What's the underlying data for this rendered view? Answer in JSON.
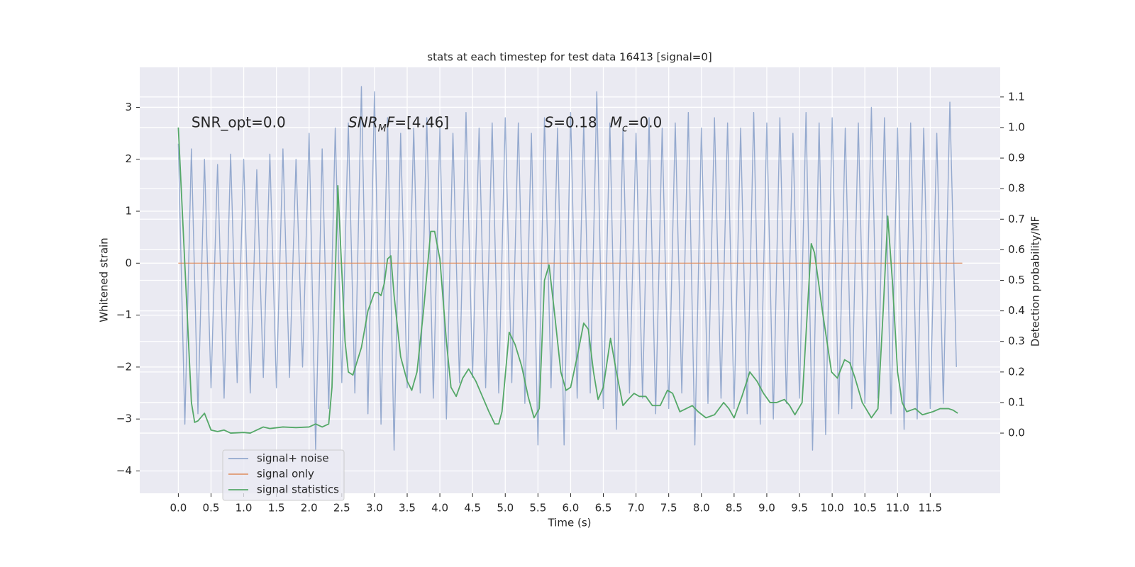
{
  "chart_data": {
    "type": "line",
    "title": "stats at each timestep for test data 16413 [signal=0]",
    "xlabel": "Time (s)",
    "ylabel": "Whitened strain",
    "y2label": "Detection probability/MF",
    "xlim": [
      -0.59,
      12.57
    ],
    "ylim": [
      -4.43,
      3.77
    ],
    "y2lim": [
      -0.197,
      1.197
    ],
    "xticks": [
      {
        "value": 0,
        "label": "0.0"
      },
      0.5,
      {
        "value": 1,
        "label": "1.0"
      },
      1.5,
      {
        "value": 2,
        "label": "2.0"
      },
      2.5,
      {
        "value": 3,
        "label": "3.0"
      },
      3.5,
      {
        "value": 4,
        "label": "4.0"
      },
      4.5,
      {
        "value": 5,
        "label": "5.0"
      },
      5.5,
      {
        "value": 6,
        "label": "6.0"
      },
      6.5,
      {
        "value": 7,
        "label": "7.0"
      },
      7.5,
      {
        "value": 8,
        "label": "8.0"
      },
      8.5,
      {
        "value": 9,
        "label": "9.0"
      },
      9.5,
      {
        "value": 10,
        "label": "10.0"
      },
      10.5,
      {
        "value": 11,
        "label": "11.0"
      },
      11.5
    ],
    "yticks": [
      {
        "value": -4,
        "label": "−4"
      },
      {
        "value": -3,
        "label": "−3"
      },
      {
        "value": -2,
        "label": "−2"
      },
      {
        "value": -1,
        "label": "−1"
      },
      0,
      1,
      2,
      3
    ],
    "y2ticks": [
      {
        "value": 0,
        "label": "0.0"
      },
      0.1,
      0.2,
      0.3,
      0.4,
      0.5,
      0.6,
      0.7,
      0.8,
      0.9,
      {
        "value": 1,
        "label": "1.0"
      },
      1.1
    ],
    "grid": true,
    "legend": "lower left",
    "annotations": [
      {
        "x": 0.2,
        "y": 2.7,
        "parts": [
          {
            "text": "SNR_opt=0.0"
          }
        ]
      },
      {
        "x": 2.6,
        "y": 2.7,
        "parts": [
          {
            "text": "SNR",
            "italic": true
          },
          {
            "text": "M",
            "italic": true,
            "sub": true
          },
          {
            "text": "F",
            "italic": true
          },
          {
            "text": "=[4.46]"
          }
        ]
      },
      {
        "x": 5.6,
        "y": 2.7,
        "parts": [
          {
            "text": "S",
            "italic": true
          },
          {
            "text": "=0.18"
          }
        ]
      },
      {
        "x": 6.6,
        "y": 2.7,
        "parts": [
          {
            "text": "M",
            "italic": true
          },
          {
            "text": "c",
            "italic": true,
            "sub": true
          },
          {
            "text": "=0.0"
          }
        ]
      }
    ],
    "series": [
      {
        "name": "signal+ noise",
        "color": "#4c72b0",
        "opacity": 0.55,
        "x": [
          0,
          0.1,
          0.2,
          0.3,
          0.4,
          0.5,
          0.6,
          0.7,
          0.8,
          0.9,
          1.0,
          1.1,
          1.2,
          1.3,
          1.4,
          1.5,
          1.6,
          1.7,
          1.8,
          1.9,
          2.0,
          2.1,
          2.2,
          2.3,
          2.4,
          2.5,
          2.6,
          2.7,
          2.8,
          2.9,
          3.0,
          3.1,
          3.2,
          3.3,
          3.4,
          3.5,
          3.6,
          3.7,
          3.8,
          3.9,
          4.0,
          4.1,
          4.2,
          4.3,
          4.4,
          4.5,
          4.6,
          4.7,
          4.8,
          4.9,
          5.0,
          5.1,
          5.2,
          5.3,
          5.4,
          5.5,
          5.6,
          5.7,
          5.8,
          5.9,
          6.0,
          6.1,
          6.2,
          6.3,
          6.4,
          6.5,
          6.6,
          6.7,
          6.8,
          6.9,
          7.0,
          7.1,
          7.2,
          7.3,
          7.4,
          7.5,
          7.6,
          7.7,
          7.8,
          7.9,
          8.0,
          8.1,
          8.2,
          8.3,
          8.4,
          8.5,
          8.6,
          8.7,
          8.8,
          8.9,
          9.0,
          9.1,
          9.2,
          9.3,
          9.4,
          9.5,
          9.6,
          9.7,
          9.8,
          9.9,
          10.0,
          10.1,
          10.2,
          10.3,
          10.4,
          10.5,
          10.6,
          10.7,
          10.8,
          10.9,
          11.0,
          11.1,
          11.2,
          11.3,
          11.4,
          11.5,
          11.6,
          11.7,
          11.8,
          11.9
        ],
        "values": [
          2.3,
          -3.1,
          2.2,
          -2.9,
          2.0,
          -2.4,
          1.9,
          -2.6,
          2.1,
          -2.3,
          2.0,
          -2.5,
          1.8,
          -2.2,
          2.1,
          -2.4,
          2.2,
          -2.2,
          2.0,
          -2.0,
          2.5,
          -3.6,
          2.2,
          -2.8,
          2.6,
          -2.3,
          2.7,
          -2.5,
          3.4,
          -2.9,
          3.3,
          -3.1,
          2.8,
          -3.6,
          2.5,
          -2.4,
          2.6,
          -2.5,
          2.8,
          -2.6,
          2.6,
          -3.0,
          2.5,
          -2.3,
          2.9,
          -2.2,
          2.6,
          -2.4,
          2.7,
          -2.5,
          2.8,
          -2.3,
          2.7,
          -2.7,
          2.5,
          -3.5,
          2.8,
          -2.4,
          2.6,
          -3.5,
          2.9,
          -2.6,
          2.7,
          -2.5,
          3.3,
          -2.8,
          2.7,
          -3.2,
          2.6,
          -2.5,
          2.5,
          -2.6,
          2.8,
          -2.9,
          2.6,
          -2.8,
          2.7,
          -2.5,
          2.9,
          -3.5,
          2.6,
          -2.7,
          2.8,
          -2.6,
          2.7,
          -2.8,
          2.6,
          -2.9,
          2.9,
          -3.1,
          2.7,
          -3.0,
          2.8,
          -2.7,
          2.5,
          -2.6,
          2.9,
          -3.6,
          2.7,
          -3.3,
          2.8,
          -2.9,
          2.6,
          -2.8,
          2.7,
          -2.7,
          3.0,
          -2.6,
          2.8,
          -2.9,
          2.6,
          -3.2,
          2.7,
          -3.0,
          2.6,
          -2.8,
          2.5,
          -2.7,
          3.1,
          -2.0
        ]
      },
      {
        "name": "signal only",
        "color": "#dd8452",
        "opacity": 0.8,
        "x": [
          0,
          11.99
        ],
        "values": [
          0,
          0
        ]
      },
      {
        "name": "signal statistics",
        "color": "#55a868",
        "opacity": 1,
        "axis": "y2",
        "x": [
          0,
          0.1,
          0.2,
          0.25,
          0.3,
          0.4,
          0.5,
          0.6,
          0.7,
          0.8,
          1.0,
          1.1,
          1.3,
          1.4,
          1.6,
          1.8,
          2.0,
          2.1,
          2.2,
          2.3,
          2.35,
          2.44,
          2.55,
          2.6,
          2.67,
          2.8,
          2.9,
          3.0,
          3.05,
          3.1,
          3.15,
          3.2,
          3.25,
          3.3,
          3.4,
          3.5,
          3.57,
          3.65,
          3.75,
          3.86,
          3.92,
          4.0,
          4.1,
          4.17,
          4.25,
          4.35,
          4.44,
          4.55,
          4.65,
          4.75,
          4.84,
          4.9,
          4.95,
          5.06,
          5.15,
          5.25,
          5.35,
          5.44,
          5.52,
          5.6,
          5.67,
          5.75,
          5.85,
          5.93,
          6.0,
          6.1,
          6.2,
          6.27,
          6.35,
          6.42,
          6.5,
          6.61,
          6.7,
          6.8,
          6.88,
          6.97,
          7.05,
          7.15,
          7.25,
          7.37,
          7.48,
          7.56,
          7.67,
          7.86,
          7.95,
          8.07,
          8.2,
          8.34,
          8.42,
          8.5,
          8.62,
          8.74,
          8.85,
          8.95,
          9.05,
          9.15,
          9.27,
          9.35,
          9.43,
          9.54,
          9.68,
          9.73,
          9.85,
          9.99,
          10.08,
          10.19,
          10.27,
          10.35,
          10.46,
          10.6,
          10.7,
          10.78,
          10.85,
          10.92,
          11.0,
          11.07,
          11.14,
          11.27,
          11.38,
          11.54,
          11.65,
          11.78,
          11.85,
          11.92
        ],
        "values": [
          1.0,
          0.55,
          0.1,
          0.035,
          0.04,
          0.065,
          0.01,
          0.005,
          0.01,
          0.0,
          0.002,
          0.0,
          0.02,
          0.015,
          0.02,
          0.018,
          0.02,
          0.03,
          0.02,
          0.03,
          0.15,
          0.81,
          0.3,
          0.2,
          0.19,
          0.28,
          0.4,
          0.46,
          0.46,
          0.45,
          0.49,
          0.57,
          0.58,
          0.45,
          0.25,
          0.17,
          0.14,
          0.2,
          0.4,
          0.66,
          0.66,
          0.57,
          0.3,
          0.15,
          0.12,
          0.18,
          0.21,
          0.17,
          0.12,
          0.07,
          0.03,
          0.03,
          0.07,
          0.33,
          0.29,
          0.22,
          0.12,
          0.05,
          0.08,
          0.5,
          0.55,
          0.4,
          0.2,
          0.14,
          0.15,
          0.25,
          0.36,
          0.34,
          0.2,
          0.11,
          0.15,
          0.31,
          0.2,
          0.09,
          0.11,
          0.13,
          0.12,
          0.12,
          0.09,
          0.09,
          0.14,
          0.13,
          0.07,
          0.09,
          0.07,
          0.05,
          0.06,
          0.1,
          0.08,
          0.05,
          0.12,
          0.2,
          0.17,
          0.13,
          0.1,
          0.1,
          0.11,
          0.09,
          0.06,
          0.1,
          0.62,
          0.59,
          0.4,
          0.2,
          0.18,
          0.24,
          0.23,
          0.18,
          0.1,
          0.05,
          0.08,
          0.4,
          0.71,
          0.5,
          0.2,
          0.1,
          0.07,
          0.08,
          0.06,
          0.07,
          0.08,
          0.08,
          0.075,
          0.065
        ]
      }
    ]
  }
}
